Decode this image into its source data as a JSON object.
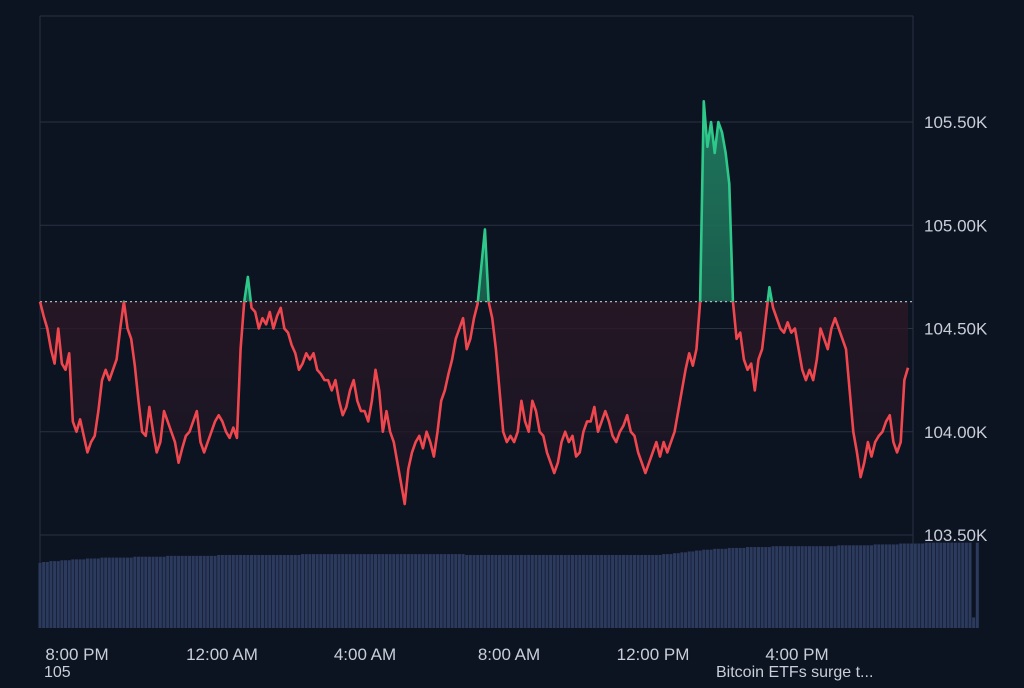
{
  "chart_data": {
    "type": "area",
    "title": "",
    "xlabel": "",
    "ylabel": "",
    "x_tick_labels": [
      "8:00 PM",
      "12:00 AM",
      "4:00 AM",
      "8:00 AM",
      "12:00 PM",
      "4:00 PM"
    ],
    "y_tick_values": [
      103500,
      104000,
      104500,
      105000,
      105500
    ],
    "y_tick_labels": [
      "103.50K",
      "104.00K",
      "104.50K",
      "105.00K",
      "105.50K"
    ],
    "ylim": [
      103000,
      106000
    ],
    "reference_value": 104630,
    "grid": true,
    "series": [
      {
        "values": [
          104630,
          104560,
          104500,
          104400,
          104330,
          104500,
          104330,
          104300,
          104380,
          104050,
          104000,
          104060,
          103980,
          103900,
          103950,
          103980,
          104100,
          104250,
          104300,
          104250,
          104300,
          104350,
          104500,
          104630,
          104500,
          104450,
          104320,
          104150,
          104000,
          103980,
          104120,
          104000,
          103900,
          103950,
          104100,
          104050,
          104000,
          103950,
          103850,
          103920,
          103980,
          104000,
          104050,
          104100,
          103950,
          103900,
          103950,
          104000,
          104050,
          104080,
          104050,
          104000,
          103970,
          104020,
          103970,
          104400,
          104630,
          104750,
          104600,
          104580,
          104500,
          104550,
          104520,
          104580,
          104500,
          104560,
          104600,
          104500,
          104480,
          104420,
          104380,
          104300,
          104330,
          104380,
          104350,
          104380,
          104300,
          104280,
          104250,
          104250,
          104200,
          104250,
          104150,
          104080,
          104120,
          104200,
          104250,
          104150,
          104100,
          104100,
          104050,
          104150,
          104300,
          104200,
          104000,
          104100,
          104000,
          103950,
          103850,
          103750,
          103650,
          103820,
          103900,
          103950,
          103980,
          103920,
          104000,
          103950,
          103880,
          104000,
          104150,
          104200,
          104280,
          104350,
          104450,
          104500,
          104550,
          104400,
          104450,
          104550,
          104620,
          104800,
          104980,
          104630,
          104550,
          104400,
          104200,
          104000,
          103950,
          103980,
          103950,
          104000,
          104150,
          104050,
          104000,
          104150,
          104100,
          104000,
          103980,
          103900,
          103850,
          103800,
          103850,
          103950,
          104000,
          103950,
          103980,
          103880,
          103900,
          104000,
          104050,
          104050,
          104120,
          104000,
          104050,
          104100,
          104050,
          103980,
          103950,
          104000,
          104030,
          104080,
          104000,
          103980,
          103900,
          103850,
          103800,
          103850,
          103900,
          103950,
          103880,
          103950,
          103900,
          103950,
          104000,
          104100,
          104200,
          104300,
          104380,
          104320,
          104400,
          104630,
          105600,
          105380,
          105500,
          105350,
          105500,
          105450,
          105350,
          105200,
          104630,
          104450,
          104480,
          104350,
          104300,
          104330,
          104200,
          104350,
          104400,
          104550,
          104700,
          104600,
          104550,
          104500,
          104480,
          104530,
          104480,
          104500,
          104400,
          104300,
          104250,
          104300,
          104250,
          104350,
          104500,
          104450,
          104400,
          104500,
          104550,
          104500,
          104450,
          104400,
          104200,
          104000,
          103900,
          103780,
          103850,
          103950,
          103880,
          103950,
          103980,
          104000,
          104050,
          104080,
          103950,
          103900,
          103950,
          104250,
          104310
        ],
        "green_above": true
      }
    ],
    "volume_values": [
      0.74,
      0.75,
      0.75,
      0.76,
      0.76,
      0.76,
      0.77,
      0.77,
      0.77,
      0.78,
      0.78,
      0.78,
      0.78,
      0.79,
      0.79,
      0.79,
      0.79,
      0.8,
      0.8,
      0.8,
      0.8,
      0.8,
      0.8,
      0.8,
      0.8,
      0.8,
      0.81,
      0.81,
      0.81,
      0.81,
      0.81,
      0.81,
      0.81,
      0.81,
      0.81,
      0.82,
      0.82,
      0.82,
      0.82,
      0.82,
      0.82,
      0.82,
      0.82,
      0.82,
      0.82,
      0.82,
      0.82,
      0.82,
      0.82,
      0.83,
      0.83,
      0.83,
      0.83,
      0.83,
      0.83,
      0.83,
      0.83,
      0.83,
      0.83,
      0.83,
      0.83,
      0.83,
      0.83,
      0.83,
      0.83,
      0.83,
      0.83,
      0.83,
      0.83,
      0.83,
      0.83,
      0.83,
      0.84,
      0.84,
      0.84,
      0.84,
      0.84,
      0.84,
      0.84,
      0.84,
      0.84,
      0.84,
      0.84,
      0.84,
      0.84,
      0.84,
      0.84,
      0.84,
      0.84,
      0.84,
      0.84,
      0.84,
      0.84,
      0.84,
      0.84,
      0.84,
      0.84,
      0.84,
      0.84,
      0.84,
      0.84,
      0.84,
      0.84,
      0.84,
      0.84,
      0.84,
      0.84,
      0.84,
      0.84,
      0.84,
      0.84,
      0.84,
      0.84,
      0.84,
      0.84,
      0.84,
      0.84,
      0.83,
      0.83,
      0.83,
      0.83,
      0.83,
      0.83,
      0.83,
      0.83,
      0.83,
      0.83,
      0.83,
      0.83,
      0.83,
      0.83,
      0.83,
      0.83,
      0.83,
      0.83,
      0.83,
      0.83,
      0.83,
      0.83,
      0.83,
      0.83,
      0.83,
      0.83,
      0.83,
      0.83,
      0.83,
      0.83,
      0.83,
      0.83,
      0.83,
      0.83,
      0.83,
      0.83,
      0.83,
      0.83,
      0.83,
      0.83,
      0.83,
      0.83,
      0.83,
      0.83,
      0.83,
      0.83,
      0.83,
      0.83,
      0.83,
      0.83,
      0.83,
      0.83,
      0.83,
      0.83,
      0.84,
      0.84,
      0.84,
      0.85,
      0.85,
      0.86,
      0.86,
      0.87,
      0.87,
      0.88,
      0.88,
      0.89,
      0.89,
      0.89,
      0.9,
      0.9,
      0.9,
      0.9,
      0.91,
      0.91,
      0.91,
      0.91,
      0.91,
      0.92,
      0.92,
      0.92,
      0.92,
      0.92,
      0.92,
      0.92,
      0.93,
      0.93,
      0.93,
      0.93,
      0.93,
      0.93,
      0.93,
      0.93,
      0.93,
      0.93,
      0.93,
      0.93,
      0.93,
      0.93,
      0.93,
      0.93,
      0.93,
      0.93,
      0.94,
      0.94,
      0.94,
      0.94,
      0.94,
      0.94,
      0.94,
      0.94,
      0.94,
      0.94,
      0.95,
      0.95,
      0.95,
      0.95,
      0.95,
      0.95,
      0.95,
      0.96,
      0.96,
      0.96,
      0.96,
      0.96,
      0.96,
      0.96,
      0.97,
      0.97,
      0.97,
      0.97,
      0.97,
      0.97,
      0.97,
      0.97,
      0.97,
      0.97,
      0.97,
      0.97,
      0.97,
      0.12,
      0.97
    ],
    "colors": {
      "background": "#0c1321",
      "grid": "#2a3242",
      "line_below": "#f0474f",
      "line_above": "#2ec98a",
      "fill_below": "#3a1a26",
      "fill_above": "#1d6d55",
      "volume": "#2c3a5e",
      "reference": "#c9ced8"
    }
  },
  "footer": {
    "left_text": "105",
    "right_text": "Bitcoin ETFs surge t..."
  }
}
